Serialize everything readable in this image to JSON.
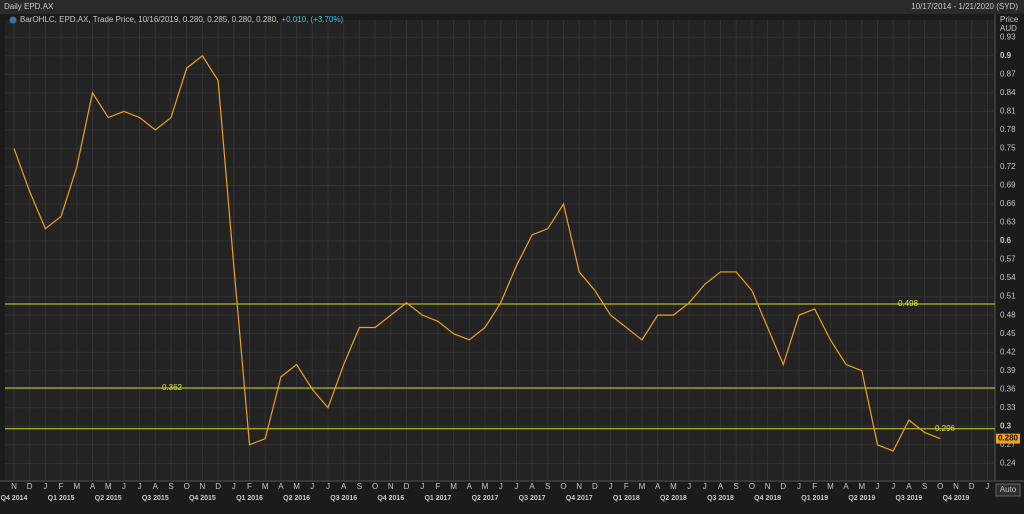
{
  "chart_data": {
    "type": "line",
    "title": "Daily EPD.AX",
    "date_range": "10/17/2014 - 1/21/2020 (SYD)",
    "axis_title": "Price",
    "axis_unit": "AUD",
    "legend_text": "BarOHLC, EPD.AX, Trade Price, 10/16/2019, 0.280, 0.285, 0.280, 0.280,",
    "legend_change": "+0.010, (+3.70%)",
    "auto_button": "Auto",
    "categories": [
      "N",
      "D",
      "J",
      "F",
      "M",
      "A",
      "M",
      "J",
      "J",
      "A",
      "S",
      "O",
      "N",
      "D",
      "J",
      "F",
      "M",
      "A",
      "M",
      "J",
      "J",
      "A",
      "S",
      "O",
      "N",
      "D",
      "J",
      "F",
      "M",
      "A",
      "M",
      "J",
      "J",
      "A",
      "S",
      "O",
      "N",
      "D",
      "J",
      "F",
      "M",
      "A",
      "M",
      "J",
      "J",
      "A",
      "S",
      "O",
      "N",
      "D",
      "J",
      "F",
      "M",
      "A",
      "M",
      "J",
      "J",
      "A",
      "S",
      "O",
      "N",
      "D",
      "J"
    ],
    "quarters": [
      "Q4 2014",
      "Q1 2015",
      "Q2 2015",
      "Q3 2015",
      "Q4 2015",
      "Q1 2016",
      "Q2 2016",
      "Q3 2016",
      "Q4 2016",
      "Q1 2017",
      "Q2 2017",
      "Q3 2017",
      "Q4 2017",
      "Q1 2018",
      "Q2 2018",
      "Q3 2018",
      "Q4 2018",
      "Q1 2019",
      "Q2 2019",
      "Q3 2019",
      "Q4 2019"
    ],
    "series": [
      {
        "name": "EPD.AX",
        "color": "#f0a020",
        "values": [
          0.75,
          0.68,
          0.62,
          0.64,
          0.72,
          0.84,
          0.8,
          0.81,
          0.8,
          0.78,
          0.8,
          0.88,
          0.9,
          0.86,
          0.56,
          0.27,
          0.28,
          0.38,
          0.4,
          0.36,
          0.33,
          0.4,
          0.46,
          0.46,
          0.48,
          0.5,
          0.48,
          0.47,
          0.45,
          0.44,
          0.46,
          0.5,
          0.56,
          0.61,
          0.62,
          0.66,
          0.55,
          0.52,
          0.48,
          0.46,
          0.44,
          0.48,
          0.48,
          0.5,
          0.53,
          0.55,
          0.55,
          0.52,
          0.46,
          0.4,
          0.48,
          0.49,
          0.44,
          0.4,
          0.39,
          0.27,
          0.26,
          0.31,
          0.29,
          0.28,
          null,
          null,
          null
        ]
      }
    ],
    "levels": [
      {
        "value": 0.498,
        "label": "0.498"
      },
      {
        "value": 0.362,
        "label": "0.362"
      },
      {
        "value": 0.296,
        "label": "0.296"
      }
    ],
    "last_price": {
      "value": 0.28,
      "label": "0.280"
    },
    "ylim": [
      0.213,
      0.958
    ],
    "yticks": [
      0.24,
      0.27,
      0.3,
      0.33,
      0.36,
      0.39,
      0.42,
      0.45,
      0.48,
      0.51,
      0.54,
      0.57,
      0.6,
      0.63,
      0.66,
      0.69,
      0.72,
      0.75,
      0.78,
      0.81,
      0.84,
      0.87,
      0.9,
      0.93
    ],
    "grid": true
  }
}
